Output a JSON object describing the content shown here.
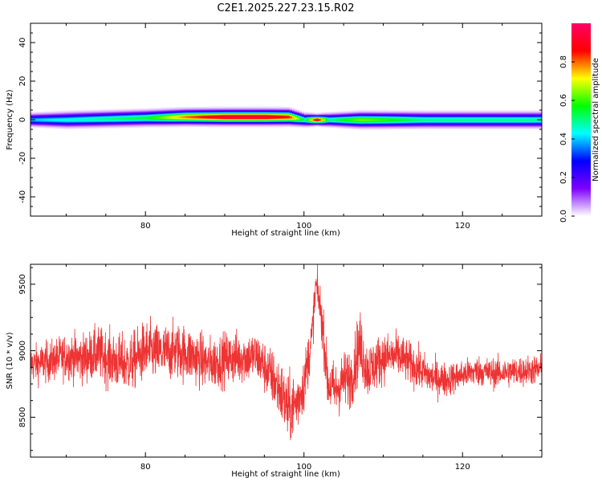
{
  "figure": {
    "title": "C2E1.2025.227.23.15.R02"
  },
  "chart_data": [
    {
      "type": "heatmap",
      "xlabel": "Height of straight line (km)",
      "ylabel": "Frequency (Hz)",
      "xlim": [
        65.5,
        130
      ],
      "ylim": [
        -50,
        50
      ],
      "x_ticks": [
        80,
        100,
        120
      ],
      "y_ticks": [
        -40,
        -20,
        0,
        20,
        40
      ],
      "grid": false,
      "colorbar": {
        "label": "Normalized spectral amplitude",
        "range": [
          0,
          1
        ],
        "ticks": [
          "0.0",
          "0.2",
          "0.4",
          "0.6",
          "0.8"
        ],
        "colors": [
          "#ffffff",
          "#7f00ff",
          "#0000ff",
          "#00ffff",
          "#00ff00",
          "#ffff00",
          "#ff0000",
          "#ff0066"
        ]
      },
      "band_profile": [
        {
          "x": 65.5,
          "center_hz": 0,
          "peak_amplitude": 0.4,
          "halfwidth_hz": 2.5
        },
        {
          "x": 70,
          "center_hz": 0,
          "peak_amplitude": 0.45,
          "halfwidth_hz": 3
        },
        {
          "x": 75,
          "center_hz": 0.5,
          "peak_amplitude": 0.5,
          "halfwidth_hz": 3
        },
        {
          "x": 80,
          "center_hz": 1,
          "peak_amplitude": 0.55,
          "halfwidth_hz": 3
        },
        {
          "x": 85,
          "center_hz": 1.5,
          "peak_amplitude": 0.8,
          "halfwidth_hz": 3
        },
        {
          "x": 90,
          "center_hz": 1.5,
          "peak_amplitude": 0.95,
          "halfwidth_hz": 3
        },
        {
          "x": 95,
          "center_hz": 1.5,
          "peak_amplitude": 0.95,
          "halfwidth_hz": 3
        },
        {
          "x": 98,
          "center_hz": 1.5,
          "peak_amplitude": 0.85,
          "halfwidth_hz": 3
        },
        {
          "x": 100,
          "center_hz": 0,
          "peak_amplitude": 0.5,
          "halfwidth_hz": 2.5
        },
        {
          "x": 101.5,
          "center_hz": 0,
          "peak_amplitude": 0.95,
          "halfwidth_hz": 2
        },
        {
          "x": 103,
          "center_hz": 0,
          "peak_amplitude": 0.5,
          "halfwidth_hz": 2.5
        },
        {
          "x": 107,
          "center_hz": 0,
          "peak_amplitude": 0.65,
          "halfwidth_hz": 3
        },
        {
          "x": 110,
          "center_hz": 0,
          "peak_amplitude": 0.6,
          "halfwidth_hz": 3
        },
        {
          "x": 115,
          "center_hz": 0,
          "peak_amplitude": 0.5,
          "halfwidth_hz": 3
        },
        {
          "x": 120,
          "center_hz": 0,
          "peak_amplitude": 0.5,
          "halfwidth_hz": 3
        },
        {
          "x": 125,
          "center_hz": 0,
          "peak_amplitude": 0.5,
          "halfwidth_hz": 3
        },
        {
          "x": 130,
          "center_hz": 0,
          "peak_amplitude": 0.5,
          "halfwidth_hz": 3
        }
      ]
    },
    {
      "type": "line",
      "xlabel": "Height of straight line (km)",
      "ylabel": "SNR (10 * v/v)",
      "xlim": [
        65.5,
        130
      ],
      "ylim": [
        8200,
        9650
      ],
      "x_ticks": [
        80,
        100,
        120
      ],
      "y_ticks": [
        8500,
        9000,
        9500
      ],
      "grid": false,
      "line_color": "#ee3333",
      "series": [
        {
          "x": [
            66,
            68,
            70,
            72,
            74,
            76,
            78,
            80,
            82,
            84,
            86,
            88,
            90,
            92,
            94,
            95,
            96,
            97,
            98,
            99,
            100,
            101,
            101.5,
            102,
            102.5,
            103,
            104,
            105,
            106,
            107,
            108,
            109,
            110,
            112,
            114,
            116,
            118,
            120,
            122,
            124,
            126,
            128,
            130
          ],
          "values": [
            8900,
            8920,
            8960,
            8940,
            8980,
            8920,
            8900,
            9000,
            8980,
            9000,
            8960,
            8900,
            8940,
            8950,
            8960,
            8880,
            8800,
            8700,
            8550,
            8600,
            8750,
            9100,
            9500,
            9350,
            9100,
            8750,
            8700,
            8780,
            8800,
            9050,
            8850,
            8900,
            8950,
            8960,
            8880,
            8800,
            8780,
            8820,
            8850,
            8830,
            8840,
            8850,
            8860
          ],
          "noise_amplitude": [
            100,
            110,
            120,
            130,
            140,
            150,
            150,
            160,
            150,
            150,
            150,
            140,
            140,
            140,
            130,
            140,
            150,
            170,
            180,
            170,
            150,
            130,
            90,
            120,
            130,
            150,
            150,
            150,
            160,
            180,
            150,
            140,
            130,
            120,
            110,
            100,
            90,
            80,
            80,
            80,
            80,
            80,
            80
          ]
        }
      ]
    }
  ]
}
